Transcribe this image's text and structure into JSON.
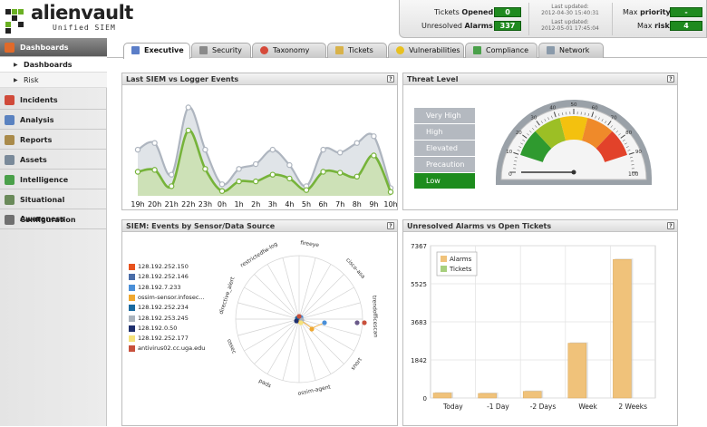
{
  "logo": {
    "name": "alienvault",
    "subtitle": "Unified SIEM"
  },
  "status": {
    "tickets_label_pre": "Tickets ",
    "tickets_label_b": "Opened",
    "tickets_value": "0",
    "alarms_label_pre": "Unresolved ",
    "alarms_label_b": "Alarms",
    "alarms_value": "337",
    "last_updated_label": "Last updated:",
    "last_updated_1": "2012-04-30 15:40:31",
    "last_updated_2": "2012-05-01 17:45:04",
    "max_priority_pre": "Max ",
    "max_priority_b": "priority",
    "max_priority_value": "-",
    "max_risk_pre": "Max ",
    "max_risk_b": "risk",
    "max_risk_value": "4"
  },
  "sidebar": {
    "dashboards": "Dashboards",
    "sub_dashboards": "Dashboards",
    "sub_risk": "Risk",
    "items": [
      "Incidents",
      "Analysis",
      "Reports",
      "Assets",
      "Intelligence",
      "Situational Awareness",
      "Configuration"
    ]
  },
  "tabs": [
    "Executive",
    "Security",
    "Taxonomy",
    "Tickets",
    "Vulnerabilities",
    "Compliance",
    "Network"
  ],
  "panels": {
    "siem_logger": "Last SIEM vs Logger Events",
    "threat": "Threat Level",
    "sensor": "SIEM: Events by Sensor/Data Source",
    "alarms_tickets": "Unresolved Alarms vs Open Tickets",
    "help": "?"
  },
  "threat_levels": [
    "Very High",
    "High",
    "Elevated",
    "Precaution",
    "Low"
  ],
  "threat_selected": "Low",
  "gauge": {
    "min": "0",
    "max": "100",
    "ticks": [
      "10",
      "20",
      "30",
      "40",
      "50",
      "60",
      "70",
      "80",
      "90"
    ],
    "value": 0
  },
  "sensor_legend": [
    {
      "label": "128.192.252.150",
      "color": "#e8521e"
    },
    {
      "label": "128.192.252.146",
      "color": "#4a6da8"
    },
    {
      "label": "128.192.7.233",
      "color": "#4a8fd8"
    },
    {
      "label": "ossim-sensor.infosec...",
      "color": "#f0a830"
    },
    {
      "label": "128.192.252.234",
      "color": "#1a6aa0"
    },
    {
      "label": "128.192.253.245",
      "color": "#aab3bd"
    },
    {
      "label": "128.192.0.50",
      "color": "#1e2f6e"
    },
    {
      "label": "128.192.252.177",
      "color": "#f5e27a"
    },
    {
      "label": "antivirus02.cc.uga.edu",
      "color": "#c8503c"
    }
  ],
  "radar_axes": [
    "fireeye",
    "cisco-asa",
    "trendofficescan",
    "snort",
    "ossim-agent",
    "pads",
    "ossec",
    "directive_alert",
    "restrictedfw-log"
  ],
  "chart_data": [
    {
      "type": "area",
      "title": "Last SIEM vs Logger Events",
      "categories": [
        "19h",
        "20h",
        "21h",
        "22h",
        "23h",
        "0h",
        "1h",
        "2h",
        "3h",
        "4h",
        "5h",
        "6h",
        "7h",
        "8h",
        "9h",
        "10h"
      ],
      "ylim": [
        0,
        100
      ],
      "series": [
        {
          "name": "",
          "color": "#aeb5bf",
          "values": [
            48,
            55,
            22,
            92,
            48,
            12,
            28,
            33,
            48,
            32,
            10,
            48,
            45,
            55,
            62,
            8
          ]
        },
        {
          "name": "",
          "color": "#76b33a",
          "values": [
            25,
            27,
            10,
            68,
            28,
            5,
            15,
            15,
            22,
            18,
            6,
            25,
            24,
            20,
            42,
            4
          ]
        }
      ],
      "grid": false
    },
    {
      "type": "bar",
      "title": "Unresolved Alarms vs Open Tickets",
      "categories": [
        "Today",
        "-1 Day",
        "-2 Days",
        "Week",
        "2 Weeks"
      ],
      "yticks": [
        "7367",
        "5525",
        "3683",
        "1842",
        "0"
      ],
      "ylim": [
        0,
        7367
      ],
      "legend": "top-left",
      "series": [
        {
          "name": "Alarms",
          "color": "#f0c27a",
          "values": [
            240,
            220,
            320,
            2650,
            6700
          ]
        },
        {
          "name": "Tickets",
          "color": "#a7cf7d",
          "values": [
            0,
            0,
            0,
            0,
            0
          ]
        }
      ],
      "grid": true
    },
    {
      "type": "scatter",
      "title": "SIEM: Events by Sensor/Data Source",
      "subtype": "radar"
    }
  ]
}
